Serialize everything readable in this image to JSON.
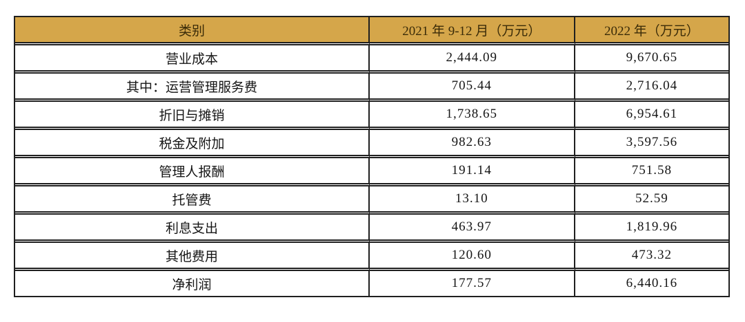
{
  "table": {
    "columns": [
      {
        "label": "类别"
      },
      {
        "label": "2021 年 9-12 月（万元）"
      },
      {
        "label": "2022 年（万元）"
      }
    ],
    "rows": [
      {
        "label": "营业成本",
        "col2021": "2,444.09",
        "col2022": "9,670.65"
      },
      {
        "label": "其中：运营管理服务费",
        "col2021": "705.44",
        "col2022": "2,716.04"
      },
      {
        "label": "折旧与摊销",
        "col2021": "1,738.65",
        "col2022": "6,954.61"
      },
      {
        "label": "税金及附加",
        "col2021": "982.63",
        "col2022": "3,597.56"
      },
      {
        "label": "管理人报酬",
        "col2021": "191.14",
        "col2022": "751.58"
      },
      {
        "label": "托管费",
        "col2021": "13.10",
        "col2022": "52.59"
      },
      {
        "label": "利息支出",
        "col2021": "463.97",
        "col2022": "1,819.96"
      },
      {
        "label": "其他费用",
        "col2021": "120.60",
        "col2022": "473.32"
      },
      {
        "label": "净利润",
        "col2021": "177.57",
        "col2022": "6,440.16"
      }
    ]
  },
  "colors": {
    "header_bg": "#d5a64a",
    "header_text": "#3a2b08",
    "border": "#1f1f1f",
    "body_text": "#151515",
    "page_bg": "#ffffff"
  },
  "chart_data": {
    "type": "table",
    "title": "",
    "columns": [
      "类别",
      "2021 年 9-12 月（万元）",
      "2022 年（万元）"
    ],
    "categories": [
      "营业成本",
      "其中：运营管理服务费",
      "折旧与摊销",
      "税金及附加",
      "管理人报酬",
      "托管费",
      "利息支出",
      "其他费用",
      "净利润"
    ],
    "series": [
      {
        "name": "2021 年 9-12 月（万元）",
        "values": [
          2444.09,
          705.44,
          1738.65,
          982.63,
          191.14,
          13.1,
          463.97,
          120.6,
          177.57
        ]
      },
      {
        "name": "2022 年（万元）",
        "values": [
          9670.65,
          2716.04,
          6954.61,
          3597.56,
          751.58,
          52.59,
          1819.96,
          473.32,
          6440.16
        ]
      }
    ]
  }
}
